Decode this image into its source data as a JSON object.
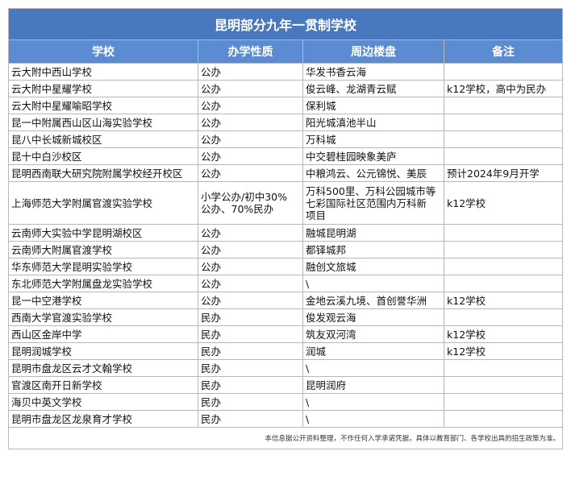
{
  "table": {
    "title": "昆明部分九年一贯制学校",
    "columns": [
      "学校",
      "办学性质",
      "周边楼盘",
      "备注"
    ],
    "rows": [
      [
        "云大附中西山学校",
        "公办",
        "华发书香云海",
        null
      ],
      [
        "云大附中星耀学校",
        "公办",
        "俊云峰、龙湖青云赋",
        "k12学校，高中为民办"
      ],
      [
        "云大附中星耀喻昭学校",
        "公办",
        "保利城",
        null
      ],
      [
        "昆一中附属西山区山海实验学校",
        "公办",
        "阳光城滇池半山",
        null
      ],
      [
        "昆八中长城新城校区",
        "公办",
        "万科城",
        null
      ],
      [
        "昆十中白沙校区",
        "公办",
        "中交碧桂园映象美庐",
        null
      ],
      [
        "昆明西南联大研究院附属学校经开校区",
        "公办",
        "中粮鸿云、公元锦悦、美辰",
        "预计2024年9月开学"
      ],
      [
        "上海师范大学附属官渡实验学校",
        "小学公办/初中30%\n公办、70%民办",
        "万科500里、万科公园城市等\n七彩国际社区范围内万科新\n项目",
        "k12学校"
      ],
      [
        "云南师大实验中学昆明湖校区",
        "公办",
        "融城昆明湖",
        null
      ],
      [
        "云南师大附属官渡学校",
        "公办",
        "都铎城邦",
        null
      ],
      [
        "华东师范大学昆明实验学校",
        "公办",
        "融创文旅城",
        null
      ],
      [
        "东北师范大学附属盘龙实验学校",
        "公办",
        "\\",
        null
      ],
      [
        "昆一中空港学校",
        "公办",
        "金地云溪九境、首创誉华洲",
        "k12学校"
      ],
      [
        "西南大学官渡实验学校",
        "民办",
        "俊发观云海",
        null
      ],
      [
        "西山区金岸中学",
        "民办",
        "筑友双河湾",
        "k12学校"
      ],
      [
        "昆明润城学校",
        "民办",
        "润城",
        "k12学校"
      ],
      [
        "昆明市盘龙区云才文翰学校",
        "民办",
        "\\",
        null
      ],
      [
        "官渡区南开日新学校",
        "民办",
        "昆明润府",
        null
      ],
      [
        "海贝中英文学校",
        "民办",
        "\\",
        null
      ],
      [
        "昆明市盘龙区龙泉育才学校",
        "民办",
        "\\",
        null
      ]
    ],
    "note": "本信息据公开资料整理，不作任何入学承诺凭据，具体以教育部门、各学校出具的招生政策为准。"
  }
}
